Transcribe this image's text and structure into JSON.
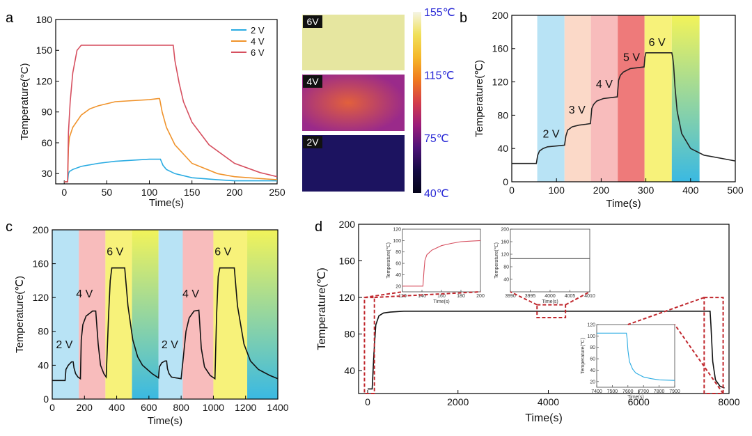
{
  "chart_data": [
    {
      "panel": "a",
      "type": "line",
      "xlabel": "Time(s)",
      "ylabel": "Temperature(°C)",
      "xlim": [
        -10,
        250
      ],
      "ylim": [
        20,
        180
      ],
      "xticks": [
        0,
        50,
        100,
        150,
        200,
        250
      ],
      "yticks": [
        30,
        60,
        90,
        120,
        150,
        180
      ],
      "legend_position": "top-right",
      "series": [
        {
          "name": "2 V",
          "color": "#29abe2",
          "x": [
            0,
            4,
            5,
            6,
            10,
            20,
            40,
            60,
            80,
            100,
            110,
            113,
            116,
            120,
            130,
            150,
            180,
            200,
            250
          ],
          "y": [
            22,
            22,
            30,
            32,
            34,
            37,
            40,
            42,
            43,
            44,
            44,
            44,
            38,
            34,
            30,
            26,
            24,
            23,
            23
          ]
        },
        {
          "name": "4 V",
          "color": "#f0932b",
          "x": [
            0,
            4,
            5,
            6,
            10,
            20,
            30,
            40,
            60,
            80,
            100,
            110,
            112,
            115,
            120,
            130,
            150,
            180,
            200,
            250
          ],
          "y": [
            22,
            22,
            55,
            65,
            75,
            87,
            93,
            96,
            100,
            101,
            102,
            103,
            103,
            90,
            75,
            58,
            40,
            30,
            27,
            24
          ]
        },
        {
          "name": "6 V",
          "color": "#d64f5f",
          "x": [
            0,
            4,
            5,
            7,
            10,
            15,
            20,
            50,
            100,
            128,
            130,
            135,
            140,
            150,
            170,
            200,
            230,
            250
          ],
          "y": [
            22,
            22,
            70,
            100,
            128,
            150,
            155,
            155,
            155,
            155,
            140,
            118,
            100,
            80,
            58,
            40,
            31,
            27
          ]
        }
      ]
    },
    {
      "panel": "thermal",
      "type": "heatmap",
      "images": [
        {
          "label": "6V",
          "base": "#e6e6a0"
        },
        {
          "label": "4V",
          "base": "#9a2a8a",
          "hot": "#e2603c"
        },
        {
          "label": "2V",
          "base": "#1c1360"
        }
      ],
      "colorbar": {
        "ticks": [
          "155℃",
          "115℃",
          "75℃",
          "40℃"
        ],
        "values": [
          155,
          115,
          75,
          40
        ],
        "stops": [
          "#f5f5e6",
          "#f0e05a",
          "#f5b82a",
          "#f07a1e",
          "#d43d4a",
          "#9c1c7a",
          "#4d1377",
          "#150b45",
          "#05041a"
        ]
      }
    },
    {
      "panel": "b",
      "type": "line",
      "xlabel": "Time(s)",
      "ylabel": "Temperature(℃)",
      "xlim": [
        0,
        500
      ],
      "ylim": [
        0,
        200
      ],
      "xticks": [
        0,
        100,
        200,
        300,
        400,
        500
      ],
      "yticks": [
        0,
        40,
        80,
        120,
        160,
        200
      ],
      "bands": [
        {
          "x0": 57,
          "x1": 118,
          "color": "#b8e3f5"
        },
        {
          "x0": 118,
          "x1": 177,
          "color": "#fbd9c8"
        },
        {
          "x0": 177,
          "x1": 237,
          "color": "#f8bcbc"
        },
        {
          "x0": 237,
          "x1": 297,
          "color": "#ee7a7a"
        },
        {
          "x0": 297,
          "x1": 358,
          "color": "#f7f27a"
        },
        {
          "x0": 358,
          "x1": 420,
          "gradient": [
            "#f2f35a",
            "#3ab9e2"
          ]
        }
      ],
      "annotations": [
        {
          "text": "2 V",
          "x": 88,
          "y": 53
        },
        {
          "text": "3 V",
          "x": 146,
          "y": 82
        },
        {
          "text": "4 V",
          "x": 207,
          "y": 113
        },
        {
          "text": "5 V",
          "x": 268,
          "y": 145
        },
        {
          "text": "6 V",
          "x": 325,
          "y": 163
        }
      ],
      "series": [
        {
          "name": "",
          "color": "#222222",
          "x": [
            0,
            55,
            58,
            62,
            70,
            80,
            100,
            118,
            121,
            125,
            135,
            150,
            165,
            176,
            179,
            183,
            190,
            205,
            220,
            236,
            239,
            243,
            250,
            265,
            280,
            296,
            298,
            300,
            358,
            360,
            362,
            365,
            370,
            380,
            400,
            430,
            470,
            500
          ],
          "y": [
            22,
            22,
            32,
            37,
            40,
            42,
            43,
            44,
            55,
            62,
            66,
            68,
            69,
            70,
            88,
            93,
            97,
            100,
            101,
            102,
            122,
            128,
            132,
            136,
            137,
            138,
            150,
            155,
            155,
            150,
            140,
            115,
            85,
            58,
            40,
            32,
            28,
            25
          ]
        }
      ]
    },
    {
      "panel": "c",
      "type": "line",
      "xlabel": "Time(s)",
      "ylabel": "Temperature(℃)",
      "xlim": [
        0,
        1400
      ],
      "ylim": [
        0,
        200
      ],
      "xticks": [
        0,
        200,
        400,
        600,
        800,
        1000,
        1200,
        1400
      ],
      "yticks": [
        0,
        40,
        80,
        120,
        160,
        200
      ],
      "bands": [
        {
          "x0": 0,
          "x1": 165,
          "color": "#b8e3f5"
        },
        {
          "x0": 165,
          "x1": 330,
          "color": "#f8bcbc"
        },
        {
          "x0": 330,
          "x1": 495,
          "color": "#f7f27a"
        },
        {
          "x0": 495,
          "x1": 660,
          "gradient": [
            "#f2f35a",
            "#3ab9e2"
          ]
        },
        {
          "x0": 660,
          "x1": 810,
          "color": "#b8e3f5"
        },
        {
          "x0": 810,
          "x1": 1000,
          "color": "#f8bcbc"
        },
        {
          "x0": 1000,
          "x1": 1210,
          "color": "#f7f27a"
        },
        {
          "x0": 1210,
          "x1": 1400,
          "gradient": [
            "#f2f35a",
            "#3ab9e2"
          ]
        }
      ],
      "annotations": [
        {
          "text": "2 V",
          "x": 75,
          "y": 60
        },
        {
          "text": "4 V",
          "x": 200,
          "y": 120
        },
        {
          "text": "6 V",
          "x": 390,
          "y": 170
        },
        {
          "text": "2 V",
          "x": 730,
          "y": 60
        },
        {
          "text": "4 V",
          "x": 860,
          "y": 120
        },
        {
          "text": "6 V",
          "x": 1060,
          "y": 170
        }
      ],
      "series": [
        {
          "name": "",
          "color": "#111111",
          "x": [
            0,
            80,
            85,
            100,
            120,
            130,
            135,
            145,
            160,
            175,
            180,
            190,
            210,
            250,
            270,
            275,
            285,
            300,
            320,
            335,
            350,
            360,
            370,
            400,
            440,
            450,
            470,
            500,
            530,
            560,
            620,
            660,
            665,
            680,
            700,
            710,
            715,
            725,
            740,
            800,
            830,
            850,
            880,
            910,
            915,
            925,
            945,
            980,
            1010,
            1020,
            1030,
            1040,
            1080,
            1120,
            1130,
            1150,
            1190,
            1230,
            1280,
            1350,
            1400
          ],
          "y": [
            22,
            22,
            35,
            40,
            44,
            44,
            37,
            30,
            26,
            24,
            70,
            88,
            98,
            104,
            104,
            92,
            65,
            40,
            30,
            26,
            100,
            140,
            155,
            155,
            155,
            155,
            110,
            70,
            50,
            40,
            30,
            25,
            38,
            43,
            45,
            45,
            36,
            30,
            26,
            24,
            80,
            96,
            104,
            105,
            90,
            60,
            38,
            28,
            24,
            100,
            145,
            155,
            155,
            155,
            155,
            110,
            65,
            45,
            35,
            28,
            24
          ]
        }
      ]
    },
    {
      "panel": "d",
      "type": "line",
      "xlabel": "Time(s)",
      "ylabel": "Temperature(℃)",
      "xlim": [
        -200,
        8000
      ],
      "ylim": [
        15,
        200
      ],
      "xticks": [
        0,
        2000,
        4000,
        6000,
        8000
      ],
      "yticks": [
        40,
        80,
        120,
        160,
        200
      ],
      "series": [
        {
          "name": "",
          "color": "#111111",
          "x": [
            0,
            100,
            140,
            180,
            250,
            350,
            500,
            800,
            7580,
            7600,
            7640,
            7700,
            7800,
            7900
          ],
          "y": [
            20,
            20,
            60,
            90,
            100,
            103,
            104,
            105,
            105,
            90,
            50,
            30,
            23,
            21
          ]
        }
      ],
      "insets": [
        {
          "xlabel": "Time(s)",
          "ylabel": "Temperature(℃)",
          "xlim": [
            120,
            200
          ],
          "ylim": [
            10,
            120
          ],
          "xticks": [
            120,
            140,
            160,
            180,
            200
          ],
          "yticks": [
            20,
            40,
            60,
            80,
            100,
            120
          ],
          "color": "#d64f5f",
          "x": [
            120,
            141,
            142,
            143,
            145,
            150,
            160,
            170,
            180,
            190,
            200
          ],
          "y": [
            20,
            20,
            45,
            65,
            75,
            83,
            91,
            95,
            98,
            99,
            100
          ]
        },
        {
          "xlabel": "Time(s)",
          "ylabel": "Temperature(℃)",
          "xlim": [
            3990,
            4010
          ],
          "ylim": [
            0,
            200
          ],
          "xticks": [
            3990,
            3995,
            4000,
            4005,
            4010
          ],
          "yticks": [
            40,
            80,
            120,
            160,
            200
          ],
          "color": "#555555",
          "x": [
            3990,
            4010
          ],
          "y": [
            106,
            106
          ]
        },
        {
          "xlabel": "Time(s)",
          "ylabel": "Temperature(℃)",
          "xlim": [
            7400,
            7900
          ],
          "ylim": [
            10,
            120
          ],
          "xticks": [
            7400,
            7500,
            7600,
            7700,
            7800,
            7900
          ],
          "yticks": [
            20,
            40,
            60,
            80,
            100,
            120
          ],
          "color": "#29abe2",
          "x": [
            7400,
            7590,
            7595,
            7600,
            7610,
            7630,
            7650,
            7700,
            7750,
            7800,
            7900
          ],
          "y": [
            105,
            105,
            95,
            75,
            55,
            42,
            35,
            28,
            25,
            23,
            22
          ]
        }
      ]
    }
  ],
  "panel_labels": {
    "a": "a",
    "b": "b",
    "c": "c",
    "d": "d"
  }
}
